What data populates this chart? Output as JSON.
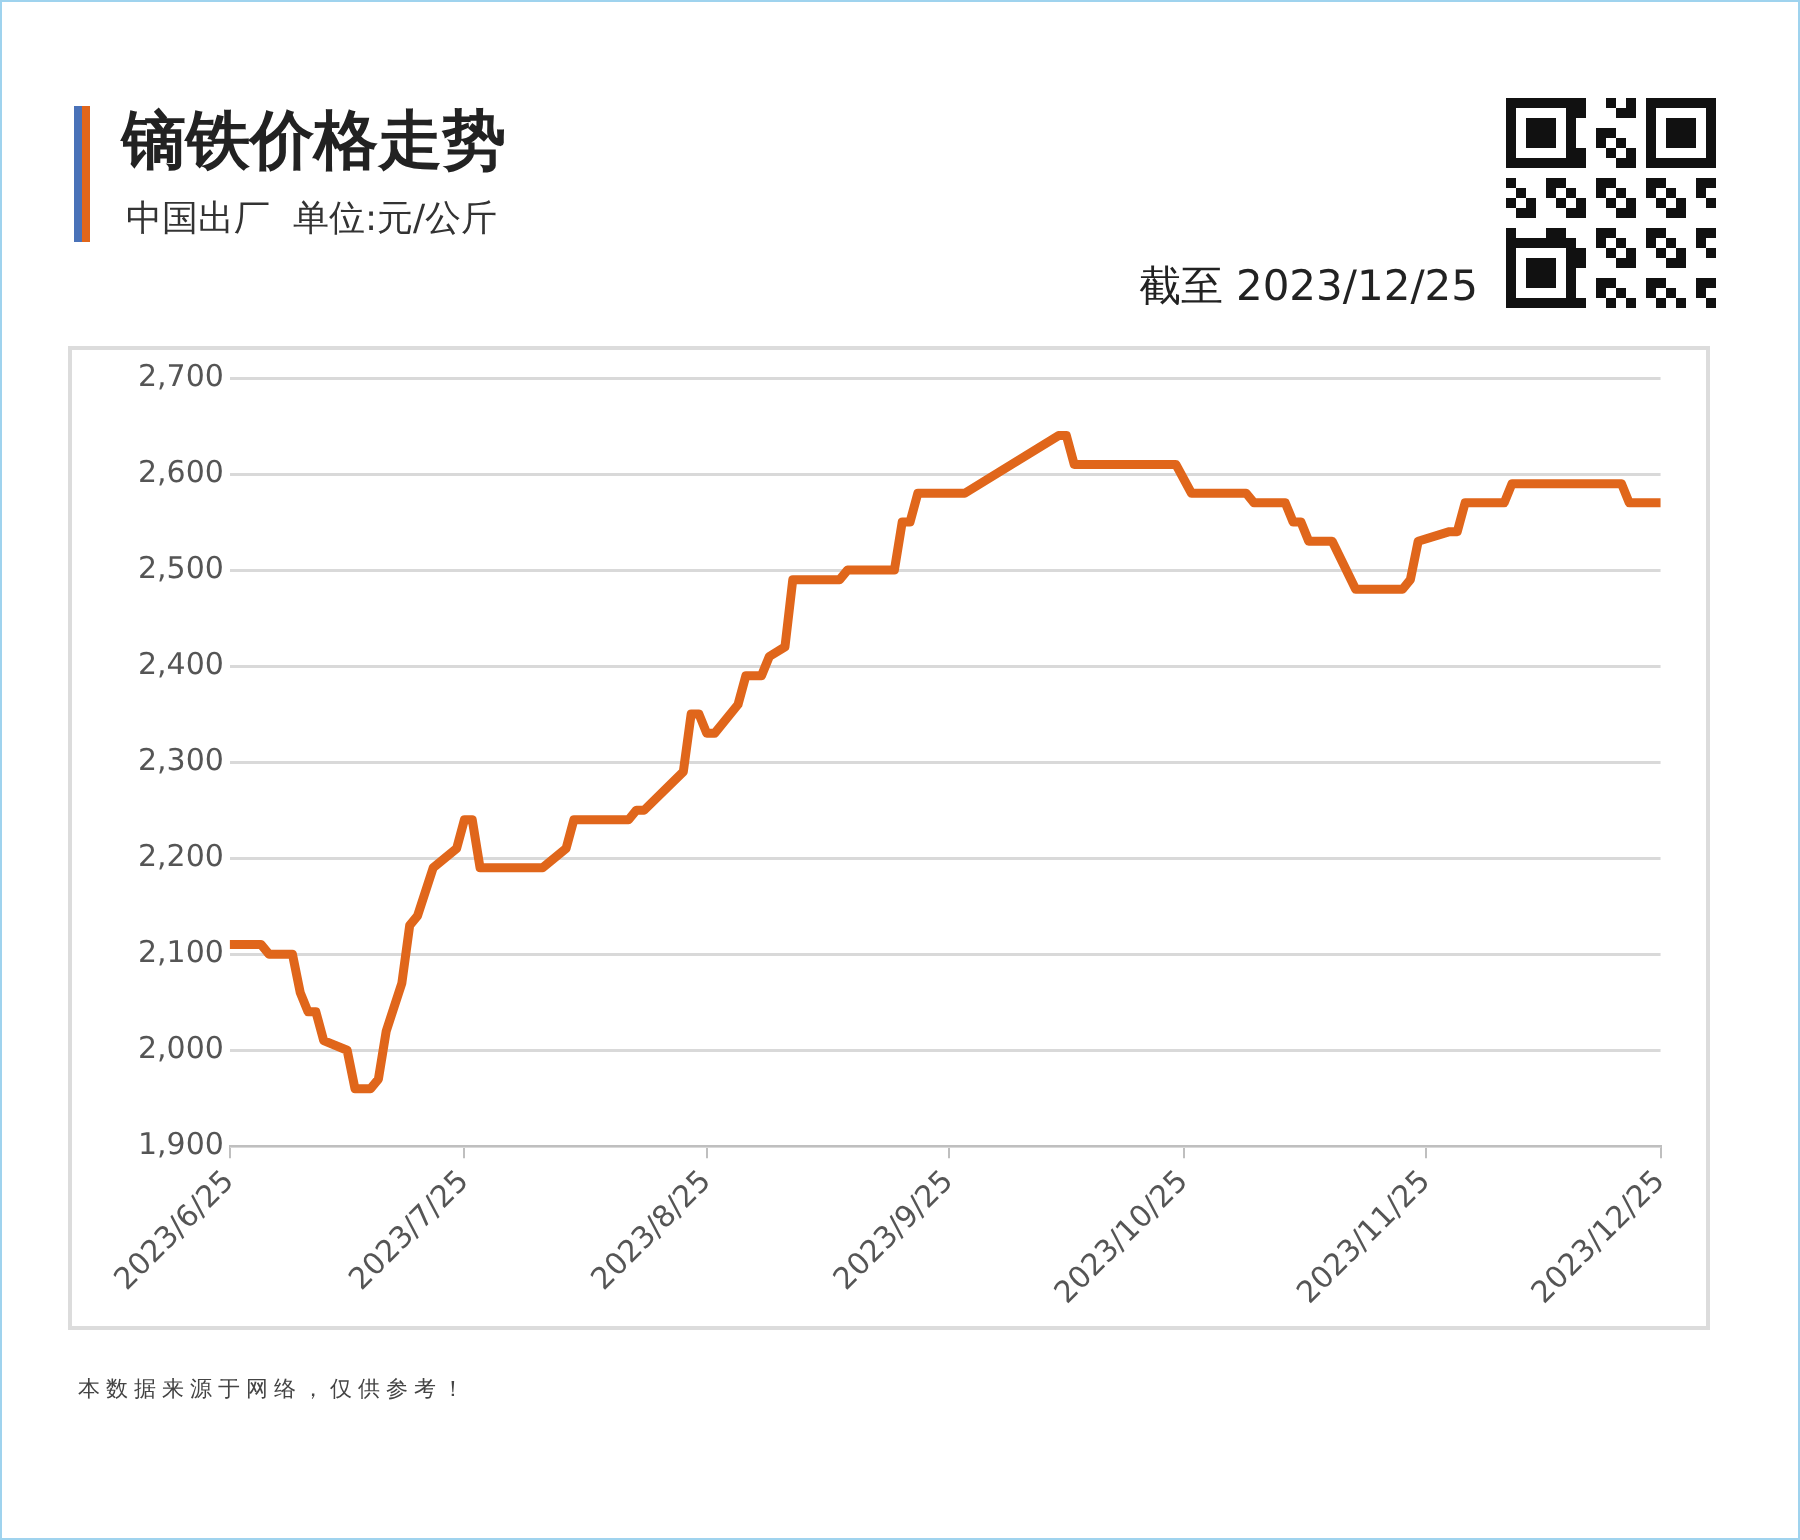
{
  "chart_data": {
    "type": "line",
    "title": "镝铁价格走势",
    "subtitle": "中国出厂  单位:元/公斤",
    "annotations": [
      "截至 2023/12/25",
      "本数据来源于网络，仅供参考！"
    ],
    "x": [
      "2023-06-25",
      "2023-06-29",
      "2023-06-30",
      "2023-07-03",
      "2023-07-04",
      "2023-07-05",
      "2023-07-06",
      "2023-07-07",
      "2023-07-10",
      "2023-07-11",
      "2023-07-13",
      "2023-07-14",
      "2023-07-15",
      "2023-07-17",
      "2023-07-18",
      "2023-07-19",
      "2023-07-21",
      "2023-07-24",
      "2023-07-25",
      "2023-07-26",
      "2023-07-27",
      "2023-08-04",
      "2023-08-07",
      "2023-08-08",
      "2023-08-15",
      "2023-08-16",
      "2023-08-17",
      "2023-08-22",
      "2023-08-23",
      "2023-08-24",
      "2023-08-25",
      "2023-08-26",
      "2023-08-29",
      "2023-08-30",
      "2023-09-01",
      "2023-09-02",
      "2023-09-04",
      "2023-09-05",
      "2023-09-11",
      "2023-09-12",
      "2023-09-18",
      "2023-09-19",
      "2023-09-20",
      "2023-09-21",
      "2023-09-27",
      "2023-10-09",
      "2023-10-10",
      "2023-10-11",
      "2023-10-24",
      "2023-10-26",
      "2023-11-02",
      "2023-11-03",
      "2023-11-07",
      "2023-11-08",
      "2023-11-09",
      "2023-11-10",
      "2023-11-13",
      "2023-11-16",
      "2023-11-22",
      "2023-11-23",
      "2023-11-24",
      "2023-11-28",
      "2023-11-29",
      "2023-11-30",
      "2023-12-05",
      "2023-12-06",
      "2023-12-20",
      "2023-12-21",
      "2023-12-25"
    ],
    "series": [
      {
        "color": "#e0661b",
        "values": [
          2110,
          2110,
          2100,
          2100,
          2060,
          2040,
          2040,
          2010,
          2000,
          1960,
          1960,
          1970,
          2020,
          2070,
          2130,
          2140,
          2190,
          2210,
          2240,
          2240,
          2190,
          2190,
          2210,
          2240,
          2240,
          2250,
          2250,
          2290,
          2350,
          2350,
          2330,
          2330,
          2360,
          2390,
          2390,
          2410,
          2420,
          2490,
          2490,
          2500,
          2500,
          2550,
          2550,
          2580,
          2580,
          2640,
          2640,
          2610,
          2610,
          2580,
          2580,
          2570,
          2570,
          2550,
          2550,
          2530,
          2530,
          2480,
          2480,
          2490,
          2530,
          2540,
          2540,
          2570,
          2570,
          2590,
          2590,
          2570,
          2570
        ]
      }
    ],
    "xlim": [
      "2023-06-25",
      "2023-12-25"
    ],
    "xticks": [
      {
        "value": "2023-06-25",
        "label": "2023/6/25"
      },
      {
        "value": "2023-07-25",
        "label": "2023/7/25"
      },
      {
        "value": "2023-08-25",
        "label": "2023/8/25"
      },
      {
        "value": "2023-09-25",
        "label": "2023/9/25"
      },
      {
        "value": "2023-10-25",
        "label": "2023/10/25"
      },
      {
        "value": "2023-11-25",
        "label": "2023/11/25"
      },
      {
        "value": "2023-12-25",
        "label": "2023/12/25"
      }
    ],
    "ylim": [
      1900,
      2700
    ],
    "yticks": [
      {
        "value": 1900,
        "label": "1,900"
      },
      {
        "value": 2000,
        "label": "2,000"
      },
      {
        "value": 2100,
        "label": "2,100"
      },
      {
        "value": 2200,
        "label": "2,200"
      },
      {
        "value": 2300,
        "label": "2,300"
      },
      {
        "value": 2400,
        "label": "2,400"
      },
      {
        "value": 2500,
        "label": "2,500"
      },
      {
        "value": 2600,
        "label": "2,600"
      },
      {
        "value": 2700,
        "label": "2,700"
      }
    ],
    "grid": "y",
    "legend": false,
    "marker": "none",
    "line_style": "solid"
  }
}
